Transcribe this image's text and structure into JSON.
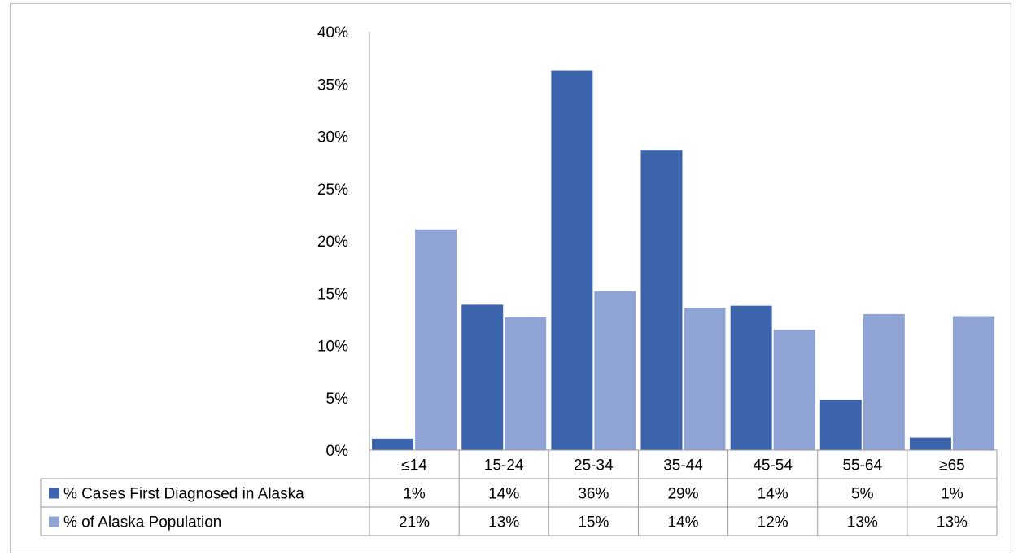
{
  "chart_data": {
    "type": "bar",
    "title": "",
    "xlabel": "",
    "ylabel": "",
    "ylim": [
      0,
      40
    ],
    "y_ticks": [
      "0%",
      "5%",
      "10%",
      "15%",
      "20%",
      "25%",
      "30%",
      "35%",
      "40%"
    ],
    "categories": [
      "≤14",
      "15-24",
      "25-34",
      "35-44",
      "45-54",
      "55-64",
      "≥65"
    ],
    "grid": false,
    "legend": "data-table-left",
    "series": [
      {
        "name": "% Cases First Diagnosed in Alaska",
        "values": [
          1.1,
          13.9,
          36.3,
          28.7,
          13.8,
          4.8,
          1.2
        ],
        "labels": [
          "1%",
          "14%",
          "36%",
          "29%",
          "14%",
          "5%",
          "1%"
        ],
        "color": "#3b64ad"
      },
      {
        "name": "% of Alaska Population",
        "values": [
          21.1,
          12.7,
          15.2,
          13.6,
          11.5,
          13.0,
          12.8
        ],
        "labels": [
          "21%",
          "13%",
          "15%",
          "14%",
          "12%",
          "13%",
          "13%"
        ],
        "color": "#8fa3d4"
      }
    ]
  }
}
